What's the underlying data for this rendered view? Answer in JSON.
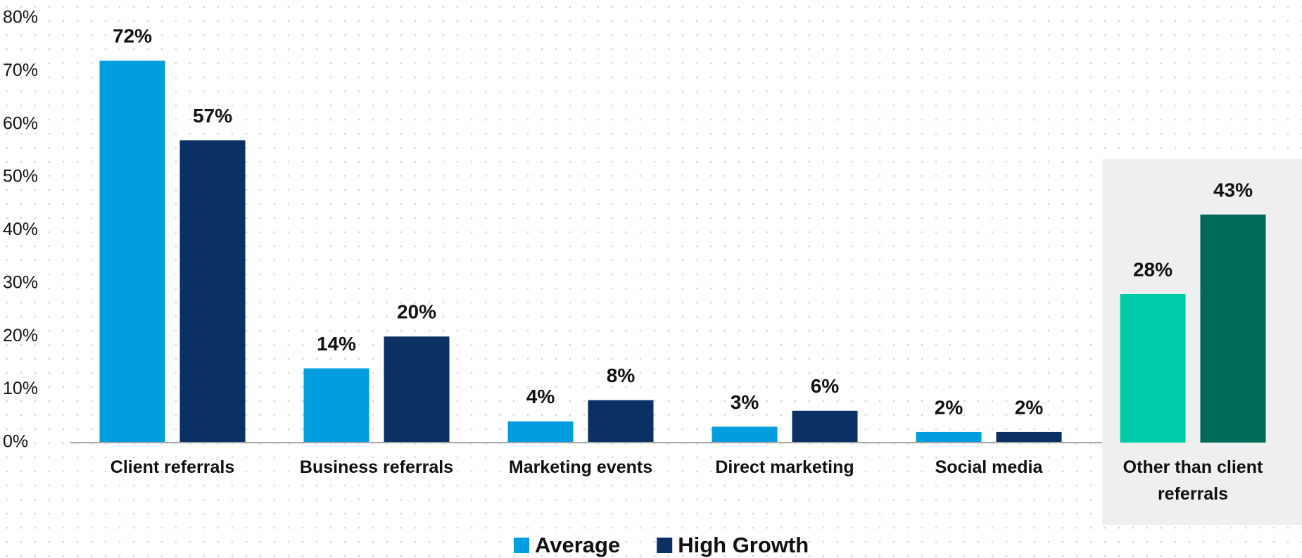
{
  "chart_data": {
    "type": "bar",
    "categories": [
      "Client referrals",
      "Business referrals",
      "Marketing events",
      "Direct marketing",
      "Social media",
      "Other than client referrals"
    ],
    "series": [
      {
        "name": "Average",
        "color": "#009ede",
        "colors": [
          "#009ede",
          "#009ede",
          "#009ede",
          "#009ede",
          "#009ede",
          "#00cca9"
        ],
        "values": [
          72,
          14,
          4,
          3,
          2,
          28
        ],
        "value_labels": [
          "72%",
          "14%",
          "4%",
          "3%",
          "2%",
          "28%"
        ]
      },
      {
        "name": "High Growth",
        "color": "#0b3064",
        "colors": [
          "#0b3064",
          "#0b3064",
          "#0b3064",
          "#0b3064",
          "#0b3064",
          "#006a5a"
        ],
        "values": [
          57,
          20,
          8,
          6,
          2,
          43
        ],
        "value_labels": [
          "57%",
          "20%",
          "8%",
          "6%",
          "2%",
          "43%"
        ]
      }
    ],
    "ylim": [
      0,
      80
    ],
    "yticks": [
      {
        "value": 0,
        "label": "0%"
      },
      {
        "value": 10,
        "label": "10%"
      },
      {
        "value": 20,
        "label": "20%"
      },
      {
        "value": 30,
        "label": "30%"
      },
      {
        "value": 40,
        "label": "40%"
      },
      {
        "value": 50,
        "label": "50%"
      },
      {
        "value": 60,
        "label": "60%"
      },
      {
        "value": 70,
        "label": "70%"
      },
      {
        "value": 80,
        "label": "80%"
      }
    ],
    "legend": "bottom"
  }
}
